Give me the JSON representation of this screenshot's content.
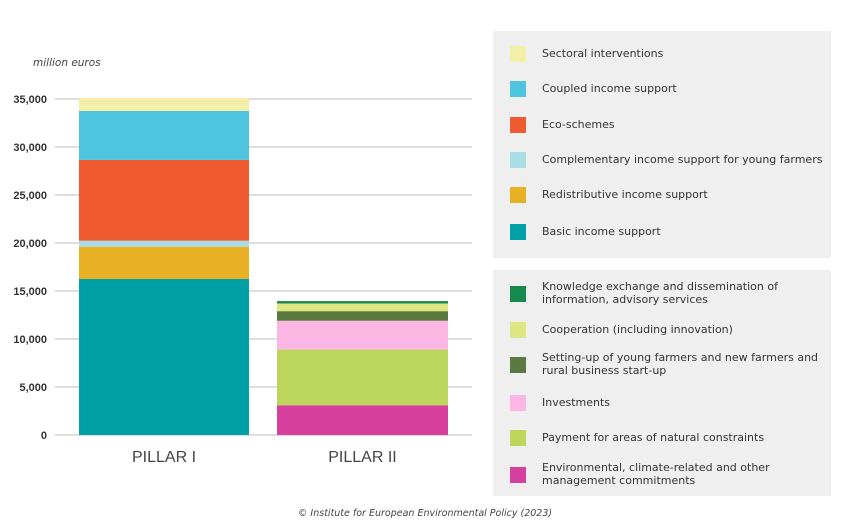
{
  "chart_data": {
    "type": "bar",
    "stacked": true,
    "ylabel": "million euros",
    "ylim": [
      0,
      35000
    ],
    "yticks": [
      "0",
      "5,000",
      "10,000",
      "15,000",
      "20,000",
      "25,000",
      "30,000",
      "35,000"
    ],
    "ytick_values": [
      0,
      5000,
      10000,
      15000,
      20000,
      25000,
      30000,
      35000
    ],
    "grid": true,
    "categories": [
      "PILLAR I",
      "PILLAR II"
    ],
    "stacks": [
      {
        "category": "PILLAR I",
        "segments": [
          {
            "name": "Basic income support",
            "value": 16250,
            "color": "#00a0a6"
          },
          {
            "name": "Redistributive income support",
            "value": 3360,
            "color": "#e8b024"
          },
          {
            "name": "Complementary income support for young farmers",
            "value": 630,
            "color": "#a8dde3"
          },
          {
            "name": "Eco-schemes",
            "value": 8410,
            "color": "#f05a30"
          },
          {
            "name": "Coupled income support",
            "value": 5100,
            "color": "#4fc4de"
          },
          {
            "name": "Sectoral interventions",
            "value": 1350,
            "color": "#f3eea8"
          }
        ]
      },
      {
        "category": "PILLAR II",
        "segments": [
          {
            "name": "Environmental, climate-related and other management commitments",
            "value": 3100,
            "color": "#d4409c"
          },
          {
            "name": "Payment for areas of natural constraints",
            "value": 5800,
            "color": "#bcd65c"
          },
          {
            "name": "Investments",
            "value": 3000,
            "color": "#fbb6e4"
          },
          {
            "name": "Setting-up of young farmers and new farmers and rural business start-up",
            "value": 1000,
            "color": "#5a7a42"
          },
          {
            "name": "Cooperation (including innovation)",
            "value": 800,
            "color": "#dde680"
          },
          {
            "name": "Knowledge exchange and dissemination of information, advisory services",
            "value": 250,
            "color": "#168a4c"
          }
        ]
      }
    ],
    "legend": {
      "pillar1": [
        {
          "label": "Sectoral interventions",
          "color": "#f3eea8"
        },
        {
          "label": "Coupled income support",
          "color": "#4fc4de"
        },
        {
          "label": "Eco-schemes",
          "color": "#f05a30"
        },
        {
          "label": "Complementary income support for young farmers",
          "color": "#a8dde3"
        },
        {
          "label": "Redistributive income support",
          "color": "#e8b024"
        },
        {
          "label": "Basic income support",
          "color": "#00a0a6"
        }
      ],
      "pillar2": [
        {
          "label": "Knowledge exchange and dissemination of information, advisory services",
          "color": "#168a4c"
        },
        {
          "label": "Cooperation (including innovation)",
          "color": "#dde680"
        },
        {
          "label": "Setting-up of young farmers and new farmers and rural business start-up",
          "color": "#5a7a42"
        },
        {
          "label": "Investments",
          "color": "#fbb6e4"
        },
        {
          "label": "Payment for areas of natural constraints",
          "color": "#bcd65c"
        },
        {
          "label": "Environmental, climate-related and other management commitments",
          "color": "#d4409c"
        }
      ],
      "placement": "right"
    }
  },
  "credit": "© Institute for European Environmental Policy (2023)"
}
